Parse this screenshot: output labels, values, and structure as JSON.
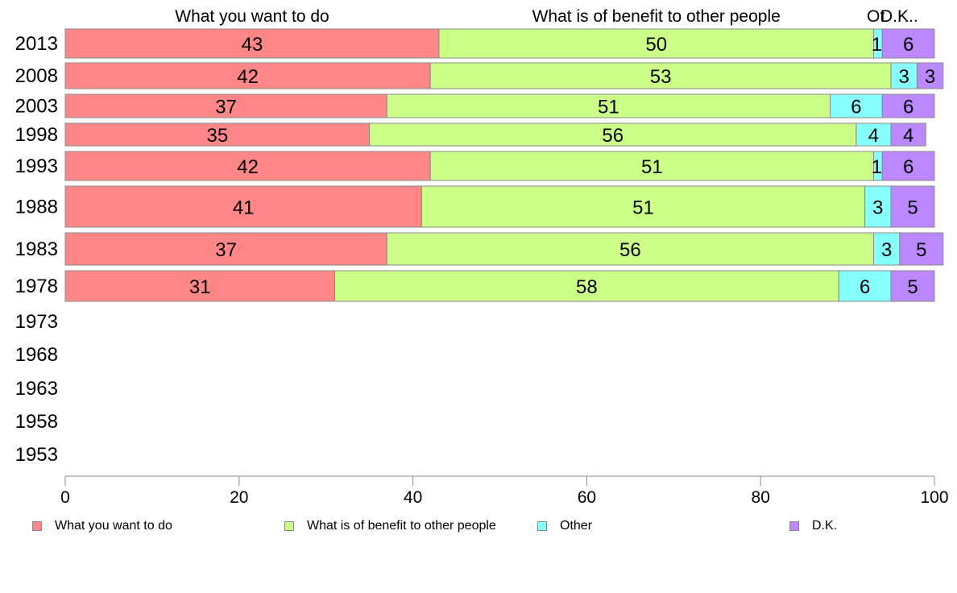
{
  "chart_data": {
    "type": "bar",
    "orientation": "horizontal",
    "stacked": true,
    "title": "",
    "xlabel": "",
    "ylabel": "",
    "xlim": [
      0,
      100
    ],
    "x_ticks": [
      0,
      20,
      40,
      60,
      80,
      100
    ],
    "grid": false,
    "legend_position": "bottom",
    "categories": [
      "2013",
      "2008",
      "2003",
      "1998",
      "1993",
      "1988",
      "1983",
      "1978",
      "1973",
      "1968",
      "1963",
      "1958",
      "1953"
    ],
    "series": [
      {
        "name": "What you want to do",
        "header": "What you want to do",
        "color": "#ff8787",
        "values": [
          43,
          42,
          37,
          35,
          42,
          41,
          37,
          31,
          null,
          null,
          null,
          null,
          null
        ]
      },
      {
        "name": "What is of benefit to other people",
        "header": "What is of benefit to other people",
        "color": "#ccff88",
        "values": [
          50,
          53,
          51,
          56,
          51,
          51,
          56,
          58,
          null,
          null,
          null,
          null,
          null
        ]
      },
      {
        "name": "Other",
        "header": "Ot",
        "color": "#88ffff",
        "values": [
          1,
          3,
          6,
          4,
          1,
          3,
          3,
          6,
          null,
          null,
          null,
          null,
          null
        ]
      },
      {
        "name": "D.K.",
        "header": "D.K..",
        "color": "#bb88ff",
        "values": [
          6,
          3,
          6,
          4,
          6,
          5,
          5,
          5,
          null,
          null,
          null,
          null,
          null
        ]
      }
    ]
  }
}
